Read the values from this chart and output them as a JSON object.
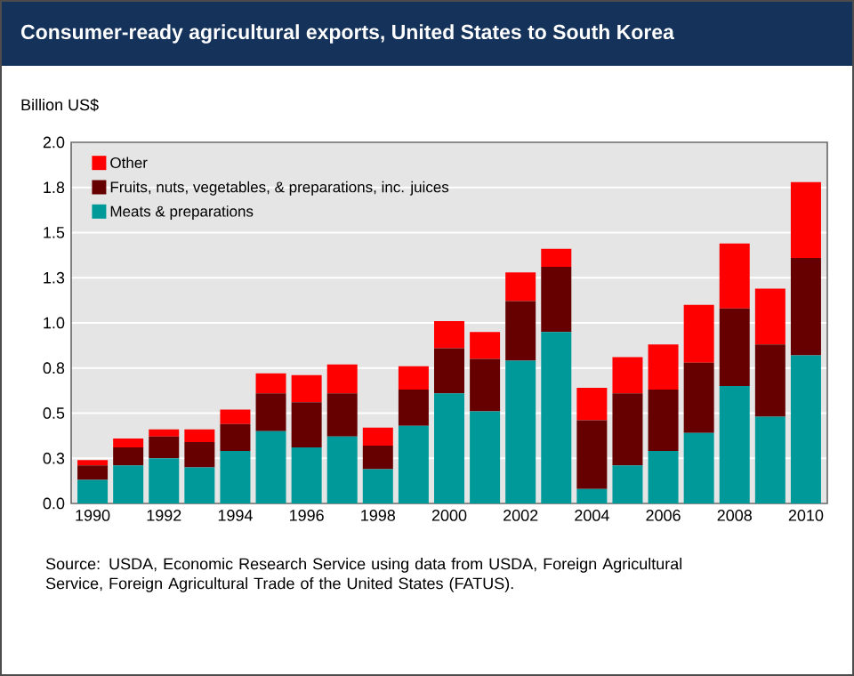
{
  "chart_data": {
    "type": "bar",
    "stacked": true,
    "title": "Consumer-ready agricultural exports, United States to South Korea",
    "ylabel": "Billion US$",
    "categories": [
      "1990",
      null,
      "1992",
      null,
      "1994",
      null,
      "1996",
      null,
      "1998",
      null,
      "2000",
      null,
      "2002",
      null,
      "2004",
      null,
      "2006",
      null,
      "2008",
      null,
      "2010"
    ],
    "series": [
      {
        "name": "Meats & preparations",
        "color": "#009999",
        "values": [
          0.13,
          0.21,
          0.25,
          0.2,
          0.29,
          0.4,
          0.31,
          0.37,
          0.19,
          0.43,
          0.61,
          0.51,
          0.79,
          0.95,
          0.08,
          0.21,
          0.29,
          0.39,
          0.65,
          0.48,
          0.82
        ]
      },
      {
        "name": "Fruits, nuts, vegetables, & preparations, inc. juices",
        "color": "#660000",
        "values": [
          0.08,
          0.1,
          0.12,
          0.14,
          0.15,
          0.21,
          0.25,
          0.24,
          0.13,
          0.2,
          0.25,
          0.29,
          0.33,
          0.36,
          0.38,
          0.4,
          0.34,
          0.39,
          0.43,
          0.4,
          0.54
        ]
      },
      {
        "name": "Other",
        "color": "#ff0000",
        "values": [
          0.03,
          0.05,
          0.04,
          0.07,
          0.08,
          0.11,
          0.15,
          0.16,
          0.1,
          0.13,
          0.15,
          0.15,
          0.16,
          0.1,
          0.18,
          0.2,
          0.25,
          0.32,
          0.36,
          0.31,
          0.42
        ]
      }
    ],
    "ylim": [
      0,
      2.0
    ],
    "yticks": [
      {
        "value": 0,
        "label": "0.0"
      },
      {
        "value": 0.25,
        "label": "0.3"
      },
      0.5,
      {
        "value": 0.75,
        "label": "0.8"
      },
      {
        "value": 1,
        "label": "1.0"
      },
      {
        "value": 1.25,
        "label": "1.3"
      },
      1.5,
      {
        "value": 1.75,
        "label": "1.8"
      },
      {
        "value": 2,
        "label": "2.0"
      }
    ],
    "grid": "y",
    "legend": "top left",
    "annotations": [
      "Source: USDA, Economic Research Service using data from USDA, Foreign Agricultural Service, Foreign Agricultural Trade of the United States (FATUS)."
    ]
  }
}
